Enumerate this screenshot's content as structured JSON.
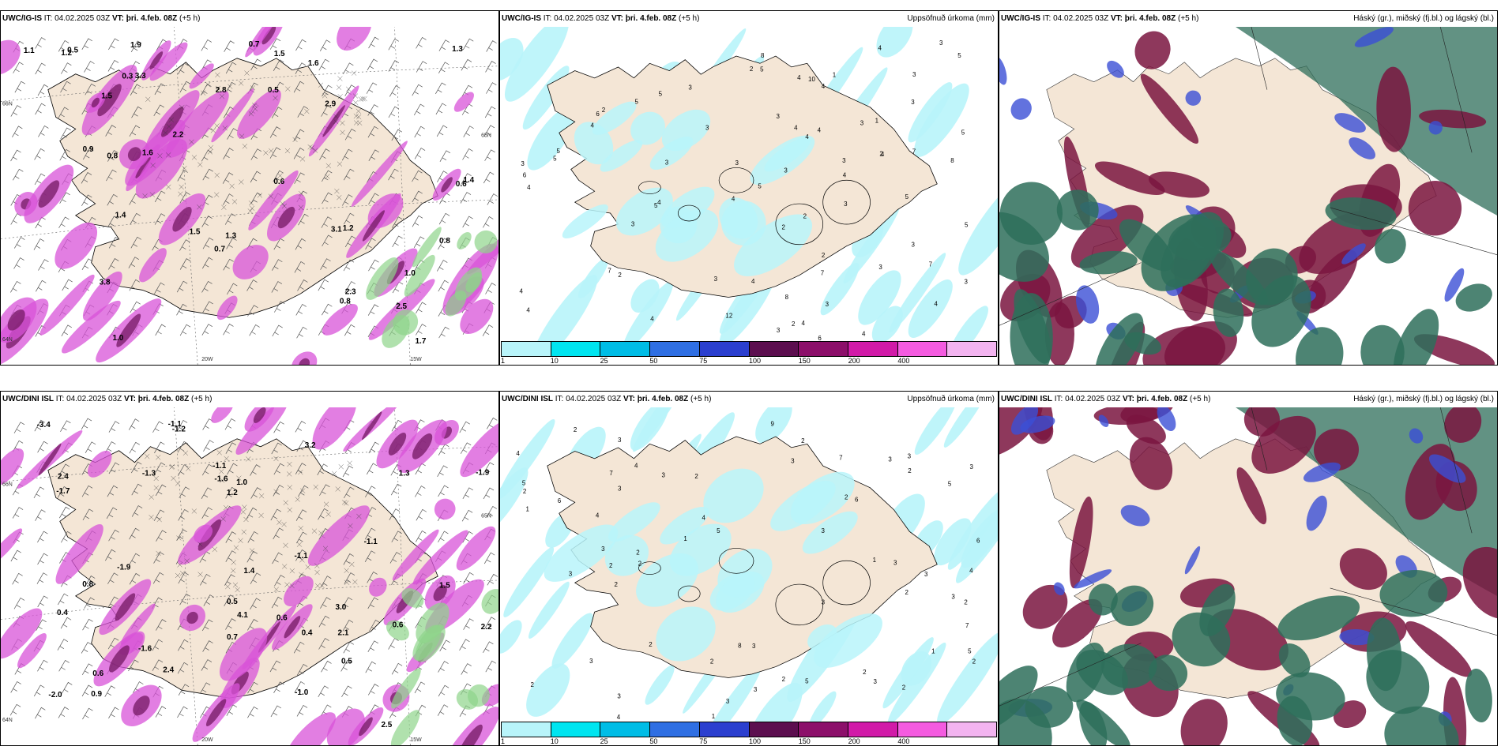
{
  "panels": [
    {
      "id": "p1",
      "model": "UWC/IG-IS",
      "it_label": "IT:",
      "it": "04.02.2025 03Z",
      "vt_label": "VT: þri. 4.feb. 08Z",
      "lead": "(+5 h)",
      "title": "",
      "type": "precip_wind",
      "numbers": [
        "1.5",
        "1.3",
        "1.0",
        "1.2",
        "0.5",
        "2.9",
        "3.3",
        "3.8",
        "2.5",
        "1.5",
        "0.8",
        "1.6",
        "1.4",
        "0.7",
        "2.8",
        "3.1",
        "1.2",
        "0.6",
        "0.8",
        "1.7",
        "2.2",
        "1.9",
        "0.3",
        "0.5",
        "1.1",
        "0.9",
        "1.0",
        "1.5",
        "1.3",
        "1.4",
        "0.8",
        "0.6",
        "2.3",
        "1.6",
        "0.7"
      ],
      "grid_labels": [
        "66N",
        "64N",
        "65N",
        "20W",
        "15W"
      ]
    },
    {
      "id": "p2",
      "model": "UWC/IG-IS",
      "it_label": "IT:",
      "it": "04.02.2025 03Z",
      "vt_label": "VT: þri. 4.feb. 08Z",
      "lead": "(+5 h)",
      "title": "Uppsöfnuð úrkoma (mm)",
      "type": "accum",
      "numbers": [
        "3",
        "3",
        "4",
        "3",
        "2",
        "4",
        "4",
        "4",
        "2",
        "3",
        "3",
        "4",
        "4",
        "4",
        "4",
        "10",
        "2",
        "5",
        "5",
        "7",
        "7",
        "4",
        "5",
        "6",
        "3",
        "4",
        "4",
        "3",
        "2",
        "8",
        "8",
        "4",
        "2",
        "3",
        "3",
        "5",
        "3",
        "2",
        "1",
        "3",
        "4",
        "2",
        "6",
        "5",
        "4",
        "5",
        "3",
        "8",
        "5",
        "7",
        "4",
        "3",
        "3",
        "2",
        "5",
        "3",
        "6",
        "3",
        "4",
        "4",
        "12",
        "1",
        "3",
        "5",
        "5",
        "3",
        "3",
        "3",
        "4",
        "5",
        "7",
        "6",
        "4"
      ],
      "colorbar": {
        "levels": [
          "1",
          "10",
          "25",
          "50",
          "75",
          "100",
          "150",
          "200",
          "400"
        ],
        "colors": [
          "#b8f4fa",
          "#00e5f0",
          "#00bde6",
          "#2f6fe3",
          "#2b3fcf",
          "#5c0e4f",
          "#8c0f6a",
          "#d11aa8",
          "#f45be0",
          "#f3b4f0"
        ]
      }
    },
    {
      "id": "p3",
      "model": "UWC/IG-IS",
      "it_label": "IT:",
      "it": "04.02.2025 03Z",
      "vt_label": "VT: þri. 4.feb. 08Z",
      "lead": "(+5 h)",
      "title": "Háský (gr.), miðský (fj.bl.) og lágský (bl.)",
      "type": "clouds"
    },
    {
      "id": "p4",
      "model": "UWC/DINI ISL",
      "it_label": "IT:",
      "it": "04.02.2025 03Z",
      "vt_label": "VT: þri. 4.feb. 08Z",
      "lead": "(+5 h)",
      "title": "",
      "type": "precip_wind",
      "numbers": [
        "-1.6",
        "-1.9",
        "-1.0",
        "-1.3",
        "-1.1",
        "-1.1",
        "-1.9",
        "-2.0",
        "-3.4",
        "-1.1",
        "-1.6",
        "-1.7",
        "-1.1",
        "-1.2",
        "2.5",
        "2.2",
        "3.2",
        "4.1",
        "3.0",
        "1.2",
        "1.4",
        "0.8",
        "0.6",
        "0.9",
        "0.5",
        "2.4",
        "1.3",
        "2.1",
        "0.6",
        "0.6",
        "0.5",
        "1.5",
        "0.7",
        "2.4",
        "1.0",
        "0.4",
        "0.4"
      ],
      "grid_labels": [
        "66N",
        "64N",
        "65N",
        "20W",
        "15W"
      ]
    },
    {
      "id": "p5",
      "model": "UWC/DINI ISL",
      "it_label": "IT:",
      "it": "04.02.2025 03Z",
      "vt_label": "VT: þri. 4.feb. 08Z",
      "lead": "(+5 h)",
      "title": "Uppsöfnuð úrkoma (mm)",
      "type": "accum",
      "numbers": [
        "2",
        "1",
        "2",
        "2",
        "2",
        "1",
        "3",
        "2",
        "2",
        "4",
        "3",
        "1",
        "1",
        "5",
        "3",
        "4",
        "2",
        "3",
        "3",
        "3",
        "3",
        "1",
        "3",
        "2",
        "3",
        "2",
        "3",
        "4",
        "2",
        "3",
        "6",
        "3",
        "2",
        "2",
        "2",
        "2",
        "3",
        "3",
        "5",
        "8",
        "7",
        "4",
        "2",
        "2",
        "2",
        "2",
        "7",
        "5",
        "10",
        "6",
        "4",
        "3",
        "3",
        "3",
        "9",
        "5",
        "6",
        "7",
        "4",
        "2",
        "3",
        "5",
        "3",
        "3",
        "1"
      ],
      "colorbar": {
        "levels": [
          "1",
          "10",
          "25",
          "50",
          "75",
          "100",
          "150",
          "200",
          "400"
        ],
        "colors": [
          "#b8f4fa",
          "#00e5f0",
          "#00bde6",
          "#2f6fe3",
          "#2b3fcf",
          "#5c0e4f",
          "#8c0f6a",
          "#d11aa8",
          "#f45be0",
          "#f3b4f0"
        ]
      }
    },
    {
      "id": "p6",
      "model": "UWC/DINI ISL",
      "it_label": "IT:",
      "it": "04.02.2025 03Z",
      "vt_label": "VT: þri. 4.feb. 08Z",
      "lead": "(+5 h)",
      "title": "Háský (gr.), miðský (fj.bl.) og lágský (bl.)",
      "type": "clouds"
    }
  ],
  "colors": {
    "land": "#f4e6d6",
    "ocean": "#ffffff",
    "coast": "#000000",
    "precip": "#d853d8",
    "precip_dark": "#7a1e6a",
    "snow_green": "#8fd48a",
    "accum": "#b8f4fa",
    "cloud_high": "#2e6e5a",
    "cloud_mid": "#7a1540",
    "cloud_low": "#3b4fd6"
  }
}
